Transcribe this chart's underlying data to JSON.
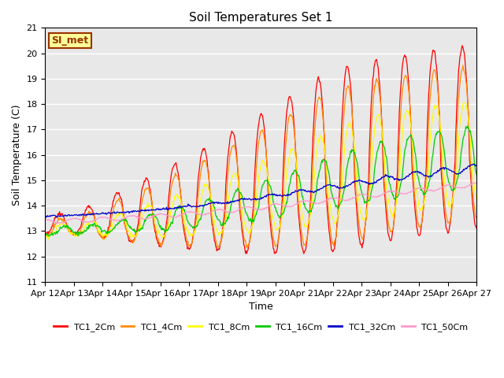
{
  "title": "Soil Temperatures Set 1",
  "xlabel": "Time",
  "ylabel": "Soil Temperature (C)",
  "ylim": [
    11.0,
    21.0
  ],
  "yticks": [
    11.0,
    12.0,
    13.0,
    14.0,
    15.0,
    16.0,
    17.0,
    18.0,
    19.0,
    20.0,
    21.0
  ],
  "bg_color": "#e8e8e8",
  "series_colors": [
    "#ff0000",
    "#ff8c00",
    "#ffff00",
    "#00cc00",
    "#0000cc",
    "#ff99cc"
  ],
  "series_labels": [
    "TC1_2Cm",
    "TC1_4Cm",
    "TC1_8Cm",
    "TC1_16Cm",
    "TC1_32Cm",
    "TC1_50Cm"
  ],
  "xtick_labels": [
    "Apr 12",
    "Apr 13",
    "Apr 14",
    "Apr 15",
    "Apr 16",
    "Apr 17",
    "Apr 18",
    "Apr 19",
    "Apr 20",
    "Apr 21",
    "Apr 22",
    "Apr 23",
    "Apr 24",
    "Apr 25",
    "Apr 26",
    "Apr 27"
  ],
  "annotation_text": "SI_met",
  "annotation_bg": "#ffff99",
  "annotation_border": "#993300",
  "annotation_text_color": "#993300"
}
